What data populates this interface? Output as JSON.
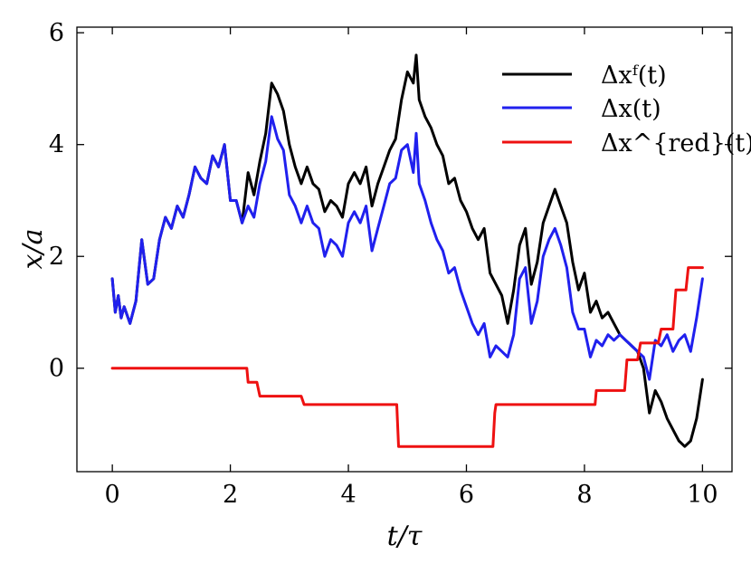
{
  "chart_data": {
    "type": "line",
    "title": "",
    "xlabel": "t/τ",
    "ylabel": "x/a",
    "xlim": [
      -0.6,
      10.5
    ],
    "ylim": [
      -1.85,
      6.1
    ],
    "x_ticks": [
      0,
      2,
      4,
      6,
      8,
      10
    ],
    "y_ticks": [
      0,
      2,
      4,
      6
    ],
    "grid": false,
    "legend_position": "top-right",
    "series": [
      {
        "name": "Δxᶠ(t)",
        "color": "#000000",
        "x": [
          0,
          0.05,
          0.1,
          0.15,
          0.2,
          0.3,
          0.4,
          0.5,
          0.55,
          0.6,
          0.7,
          0.8,
          0.9,
          1.0,
          1.1,
          1.2,
          1.3,
          1.4,
          1.5,
          1.6,
          1.7,
          1.8,
          1.9,
          2.0,
          2.1,
          2.2,
          2.3,
          2.4,
          2.5,
          2.6,
          2.7,
          2.8,
          2.9,
          3.0,
          3.1,
          3.2,
          3.3,
          3.4,
          3.5,
          3.6,
          3.7,
          3.8,
          3.9,
          4.0,
          4.1,
          4.2,
          4.3,
          4.4,
          4.5,
          4.6,
          4.7,
          4.8,
          4.9,
          5.0,
          5.1,
          5.15,
          5.2,
          5.3,
          5.4,
          5.5,
          5.6,
          5.7,
          5.8,
          5.9,
          6.0,
          6.1,
          6.2,
          6.3,
          6.4,
          6.5,
          6.6,
          6.7,
          6.8,
          6.9,
          7.0,
          7.1,
          7.2,
          7.3,
          7.4,
          7.5,
          7.6,
          7.7,
          7.8,
          7.9,
          8.0,
          8.1,
          8.2,
          8.3,
          8.4,
          8.5,
          8.6,
          8.7,
          8.8,
          8.9,
          9.0,
          9.1,
          9.2,
          9.3,
          9.4,
          9.5,
          9.6,
          9.7,
          9.8,
          9.9,
          10.0
        ],
        "y": [
          1.6,
          1.0,
          1.3,
          0.9,
          1.1,
          0.8,
          1.2,
          2.3,
          1.9,
          1.5,
          1.6,
          2.3,
          2.7,
          2.5,
          2.9,
          2.7,
          3.1,
          3.6,
          3.4,
          3.3,
          3.8,
          3.6,
          4.0,
          3.0,
          3.0,
          2.6,
          3.5,
          3.1,
          3.7,
          4.2,
          5.1,
          4.9,
          4.6,
          4.0,
          3.6,
          3.3,
          3.6,
          3.3,
          3.2,
          2.8,
          3.0,
          2.9,
          2.7,
          3.3,
          3.5,
          3.3,
          3.6,
          2.9,
          3.3,
          3.6,
          3.9,
          4.1,
          4.8,
          5.3,
          5.1,
          5.6,
          4.8,
          4.5,
          4.3,
          4.0,
          3.8,
          3.3,
          3.4,
          3.0,
          2.8,
          2.5,
          2.3,
          2.5,
          1.7,
          1.5,
          1.3,
          0.8,
          1.4,
          2.2,
          2.5,
          1.5,
          1.9,
          2.6,
          2.9,
          3.2,
          2.9,
          2.6,
          1.9,
          1.4,
          1.7,
          1.0,
          1.2,
          0.9,
          1.0,
          0.8,
          0.6,
          0.5,
          0.4,
          0.3,
          0.0,
          -0.8,
          -0.4,
          -0.6,
          -0.9,
          -1.1,
          -1.3,
          -1.4,
          -1.3,
          -0.9,
          -0.2
        ]
      },
      {
        "name": "Δx(t)",
        "color": "#2020ee",
        "x": [
          0,
          0.05,
          0.1,
          0.15,
          0.2,
          0.3,
          0.4,
          0.5,
          0.55,
          0.6,
          0.7,
          0.8,
          0.9,
          1.0,
          1.1,
          1.2,
          1.3,
          1.4,
          1.5,
          1.6,
          1.7,
          1.8,
          1.9,
          2.0,
          2.1,
          2.2,
          2.3,
          2.4,
          2.5,
          2.6,
          2.7,
          2.8,
          2.9,
          3.0,
          3.1,
          3.2,
          3.3,
          3.4,
          3.5,
          3.6,
          3.7,
          3.8,
          3.9,
          4.0,
          4.1,
          4.2,
          4.3,
          4.4,
          4.5,
          4.6,
          4.7,
          4.8,
          4.9,
          5.0,
          5.1,
          5.15,
          5.2,
          5.3,
          5.4,
          5.5,
          5.6,
          5.7,
          5.8,
          5.9,
          6.0,
          6.1,
          6.2,
          6.3,
          6.4,
          6.5,
          6.6,
          6.7,
          6.8,
          6.9,
          7.0,
          7.1,
          7.2,
          7.3,
          7.4,
          7.5,
          7.6,
          7.7,
          7.8,
          7.9,
          8.0,
          8.1,
          8.2,
          8.3,
          8.4,
          8.5,
          8.6,
          8.7,
          8.8,
          8.9,
          9.0,
          9.1,
          9.2,
          9.3,
          9.4,
          9.5,
          9.6,
          9.7,
          9.8,
          9.9,
          10.0
        ],
        "y": [
          1.6,
          1.0,
          1.3,
          0.9,
          1.1,
          0.8,
          1.2,
          2.3,
          1.9,
          1.5,
          1.6,
          2.3,
          2.7,
          2.5,
          2.9,
          2.7,
          3.1,
          3.6,
          3.4,
          3.3,
          3.8,
          3.6,
          4.0,
          3.0,
          3.0,
          2.6,
          2.9,
          2.7,
          3.3,
          3.7,
          4.5,
          4.1,
          3.9,
          3.1,
          2.9,
          2.6,
          2.9,
          2.6,
          2.5,
          2.0,
          2.3,
          2.2,
          2.0,
          2.6,
          2.8,
          2.6,
          2.9,
          2.1,
          2.5,
          2.9,
          3.3,
          3.4,
          3.9,
          4.0,
          3.5,
          4.2,
          3.3,
          3.0,
          2.6,
          2.3,
          2.1,
          1.7,
          1.8,
          1.4,
          1.1,
          0.8,
          0.6,
          0.8,
          0.2,
          0.4,
          0.3,
          0.2,
          0.6,
          1.6,
          1.8,
          0.8,
          1.2,
          2.0,
          2.3,
          2.5,
          2.2,
          1.8,
          1.0,
          0.7,
          0.7,
          0.2,
          0.5,
          0.4,
          0.6,
          0.5,
          0.6,
          0.5,
          0.4,
          0.3,
          0.2,
          -0.2,
          0.5,
          0.4,
          0.6,
          0.3,
          0.5,
          0.6,
          0.3,
          0.9,
          1.6
        ]
      },
      {
        "name": "Δx^{red}(t)",
        "color": "#ee1111",
        "x": [
          0,
          2.28,
          2.3,
          2.45,
          2.5,
          3.2,
          3.25,
          4.82,
          4.85,
          6.45,
          6.48,
          6.5,
          8.18,
          8.2,
          8.68,
          8.72,
          8.9,
          8.95,
          9.25,
          9.3,
          9.5,
          9.55,
          9.72,
          9.76,
          10.0
        ],
        "y": [
          0,
          0,
          -0.25,
          -0.25,
          -0.5,
          -0.5,
          -0.65,
          -0.65,
          -1.4,
          -1.4,
          -0.8,
          -0.65,
          -0.65,
          -0.4,
          -0.4,
          0.15,
          0.15,
          0.45,
          0.45,
          0.7,
          0.7,
          1.4,
          1.4,
          1.8,
          1.8
        ]
      }
    ]
  }
}
